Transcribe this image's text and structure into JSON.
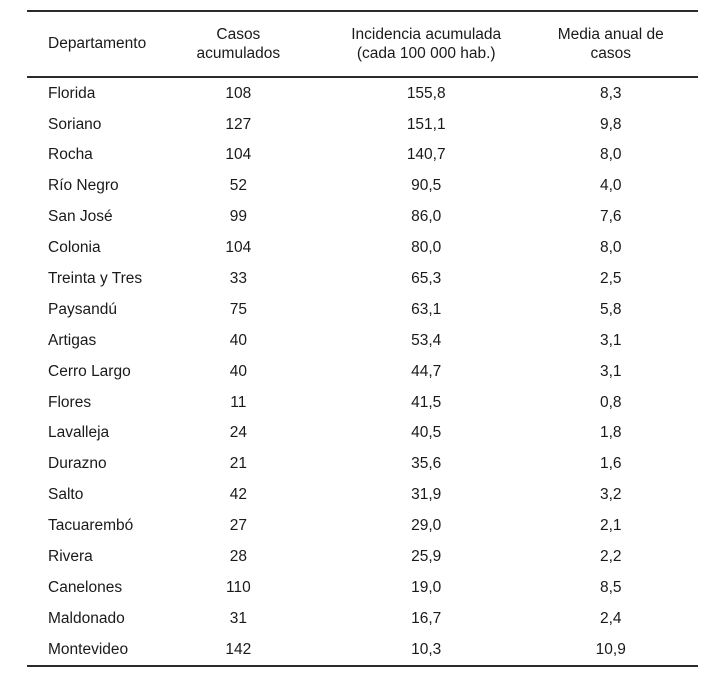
{
  "page": {
    "background": "#ffffff",
    "text_color": "#1a1a1a",
    "rule_color": "#2b2b2b"
  },
  "table": {
    "columns": [
      {
        "id": "departamento",
        "label": "Departamento"
      },
      {
        "id": "casos",
        "label": "Casos\nacumulados"
      },
      {
        "id": "incidencia",
        "label": "Incidencia acumulada\n(cada 100 000 hab.)"
      },
      {
        "id": "media",
        "label": "Media anual de\ncasos"
      }
    ],
    "rows": [
      {
        "departamento": "Florida",
        "casos": "108",
        "incidencia": "155,8",
        "media": "8,3"
      },
      {
        "departamento": "Soriano",
        "casos": "127",
        "incidencia": "151,1",
        "media": "9,8"
      },
      {
        "departamento": "Rocha",
        "casos": "104",
        "incidencia": "140,7",
        "media": "8,0"
      },
      {
        "departamento": "Río Negro",
        "casos": "52",
        "incidencia": "90,5",
        "media": "4,0"
      },
      {
        "departamento": "San José",
        "casos": "99",
        "incidencia": "86,0",
        "media": "7,6"
      },
      {
        "departamento": "Colonia",
        "casos": "104",
        "incidencia": "80,0",
        "media": "8,0"
      },
      {
        "departamento": "Treinta y Tres",
        "casos": "33",
        "incidencia": "65,3",
        "media": "2,5"
      },
      {
        "departamento": "Paysandú",
        "casos": "75",
        "incidencia": "63,1",
        "media": "5,8"
      },
      {
        "departamento": "Artigas",
        "casos": "40",
        "incidencia": "53,4",
        "media": "3,1"
      },
      {
        "departamento": "Cerro Largo",
        "casos": "40",
        "incidencia": "44,7",
        "media": "3,1"
      },
      {
        "departamento": "Flores",
        "casos": "11",
        "incidencia": "41,5",
        "media": "0,8"
      },
      {
        "departamento": "Lavalleja",
        "casos": "24",
        "incidencia": "40,5",
        "media": "1,8"
      },
      {
        "departamento": "Durazno",
        "casos": "21",
        "incidencia": "35,6",
        "media": "1,6"
      },
      {
        "departamento": "Salto",
        "casos": "42",
        "incidencia": "31,9",
        "media": "3,2"
      },
      {
        "departamento": "Tacuarembó",
        "casos": "27",
        "incidencia": "29,0",
        "media": "2,1"
      },
      {
        "departamento": "Rivera",
        "casos": "28",
        "incidencia": "25,9",
        "media": "2,2"
      },
      {
        "departamento": "Canelones",
        "casos": "110",
        "incidencia": "19,0",
        "media": "8,5"
      },
      {
        "departamento": "Maldonado",
        "casos": "31",
        "incidencia": "16,7",
        "media": "2,4"
      },
      {
        "departamento": "Montevideo",
        "casos": "142",
        "incidencia": "10,3",
        "media": "10,9"
      }
    ]
  }
}
